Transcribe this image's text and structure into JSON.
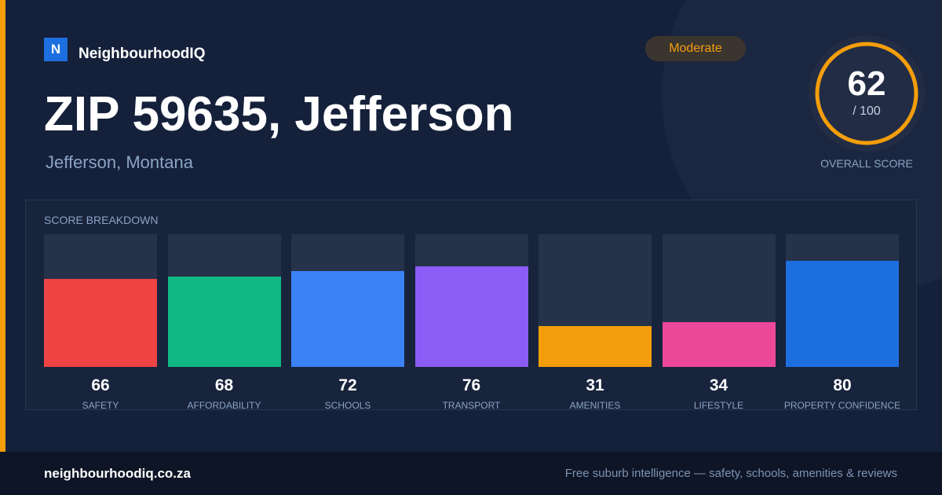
{
  "brand": {
    "logo_letter": "N",
    "name": "NeighbourhoodIQ"
  },
  "badge": {
    "label": "Moderate"
  },
  "location": {
    "title": "ZIP 59635, Jefferson",
    "subtitle": "Jefferson, Montana"
  },
  "overall": {
    "score": "62",
    "max": "/ 100",
    "fraction": 0.62,
    "label": "OVERALL SCORE",
    "ring_color": "#f59e0b"
  },
  "breakdown": {
    "title": "SCORE BREAKDOWN",
    "metrics": [
      {
        "label": "SAFETY",
        "value": "66",
        "level": 0.66,
        "color": "#ef4444"
      },
      {
        "label": "AFFORDABILITY",
        "value": "68",
        "level": 0.68,
        "color": "#10b981"
      },
      {
        "label": "SCHOOLS",
        "value": "72",
        "level": 0.72,
        "color": "#3b82f6"
      },
      {
        "label": "TRANSPORT",
        "value": "76",
        "level": 0.76,
        "color": "#8b5cf6"
      },
      {
        "label": "AMENITIES",
        "value": "31",
        "level": 0.31,
        "color": "#f59e0b"
      },
      {
        "label": "LIFESTYLE",
        "value": "34",
        "level": 0.34,
        "color": "#ec4899"
      },
      {
        "label": "PROPERTY CONFIDENCE",
        "value": "80",
        "level": 0.8,
        "color": "#1d6fe0"
      }
    ]
  },
  "footer": {
    "domain": "neighbourhoodiq.co.za",
    "tagline": "Free suburb intelligence — safety, schools, amenities & reviews"
  }
}
